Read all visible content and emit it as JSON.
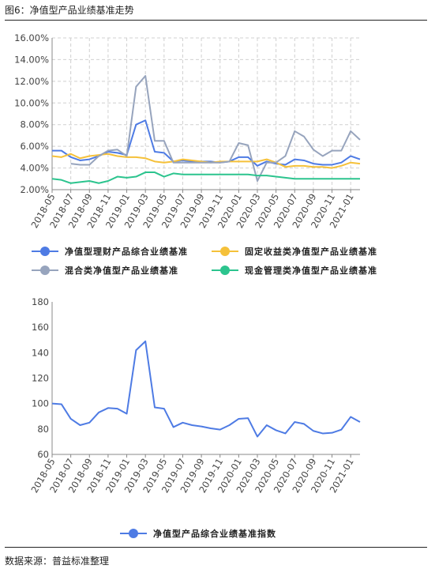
{
  "header": {
    "figure_title": "图6：净值型产品业绩基准走势"
  },
  "footer": {
    "source": "数据来源：普益标准整理"
  },
  "chart_data": [
    {
      "type": "line",
      "x_labels": [
        "2018-05",
        "2018-07",
        "2018-09",
        "2018-11",
        "2019-01",
        "2019-03",
        "2019-05",
        "2019-07",
        "2019-09",
        "2019-11",
        "2020-01",
        "2020-03",
        "2020-05",
        "2020-07",
        "2020-09",
        "2020-11",
        "2021-01"
      ],
      "x": [
        "2018-05",
        "2018-06",
        "2018-07",
        "2018-08",
        "2018-09",
        "2018-10",
        "2018-11",
        "2018-12",
        "2019-01",
        "2019-02",
        "2019-03",
        "2019-04",
        "2019-05",
        "2019-06",
        "2019-07",
        "2019-08",
        "2019-09",
        "2019-10",
        "2019-11",
        "2019-12",
        "2020-01",
        "2020-02",
        "2020-03",
        "2020-04",
        "2020-05",
        "2020-06",
        "2020-07",
        "2020-08",
        "2020-09",
        "2020-10",
        "2020-11",
        "2020-12",
        "2021-01",
        "2021-02"
      ],
      "y_ticks": [
        "2.00%",
        "4.00%",
        "6.00%",
        "8.00%",
        "10.00%",
        "12.00%",
        "14.00%",
        "16.00%"
      ],
      "ylim": [
        2,
        16
      ],
      "y_unit": "%",
      "grid": true,
      "legend_position": "bottom",
      "series": [
        {
          "name": "净值型理财产品综合业绩基准",
          "color": "#4e7be4",
          "values": [
            5.6,
            5.6,
            5.0,
            4.7,
            4.8,
            5.1,
            5.5,
            5.4,
            5.2,
            8.0,
            8.4,
            5.5,
            5.4,
            4.6,
            4.7,
            4.6,
            4.6,
            4.6,
            4.5,
            4.6,
            5.0,
            5.0,
            4.2,
            4.6,
            4.4,
            4.3,
            4.8,
            4.7,
            4.4,
            4.3,
            4.3,
            4.5,
            5.1,
            4.8
          ]
        },
        {
          "name": "固定收益类净值型产品业绩基准",
          "color": "#f5c13a",
          "values": [
            5.1,
            5.0,
            5.3,
            4.9,
            5.1,
            5.2,
            5.3,
            5.1,
            5.0,
            5.0,
            4.9,
            4.6,
            4.5,
            4.6,
            4.8,
            4.7,
            4.6,
            4.5,
            4.6,
            4.6,
            4.6,
            4.6,
            4.6,
            4.8,
            4.5,
            4.1,
            4.2,
            4.2,
            4.1,
            4.1,
            4.0,
            4.2,
            4.5,
            4.4
          ]
        },
        {
          "name": "混合类净值型产品业绩基准",
          "color": "#97a4bd",
          "values": [
            null,
            null,
            4.4,
            4.3,
            4.3,
            5.1,
            5.6,
            5.7,
            5.1,
            11.5,
            12.5,
            6.5,
            6.5,
            4.5,
            4.5,
            4.5,
            4.5,
            4.5,
            4.5,
            4.6,
            6.3,
            6.1,
            2.8,
            4.5,
            4.5,
            5.1,
            7.4,
            6.9,
            5.7,
            5.1,
            5.6,
            5.6,
            7.4,
            6.6
          ]
        },
        {
          "name": "现金管理类净值型产品业绩基准",
          "color": "#2cc48e",
          "values": [
            3.0,
            2.9,
            2.6,
            2.7,
            2.8,
            2.6,
            2.8,
            3.2,
            3.1,
            3.2,
            3.6,
            3.6,
            3.2,
            3.5,
            3.4,
            3.4,
            3.4,
            3.4,
            3.4,
            3.4,
            3.4,
            3.4,
            3.3,
            3.3,
            3.2,
            3.1,
            3.0,
            3.0,
            3.0,
            3.0,
            3.0,
            3.0,
            3.0,
            3.0
          ]
        }
      ]
    },
    {
      "type": "line",
      "x_labels": [
        "2018-05",
        "2018-07",
        "2018-09",
        "2018-11",
        "2019-01",
        "2019-03",
        "2019-05",
        "2019-07",
        "2019-09",
        "2019-11",
        "2020-01",
        "2020-03",
        "2020-05",
        "2020-07",
        "2020-09",
        "2020-11",
        "2021-01"
      ],
      "x": [
        "2018-05",
        "2018-06",
        "2018-07",
        "2018-08",
        "2018-09",
        "2018-10",
        "2018-11",
        "2018-12",
        "2019-01",
        "2019-02",
        "2019-03",
        "2019-04",
        "2019-05",
        "2019-06",
        "2019-07",
        "2019-08",
        "2019-09",
        "2019-10",
        "2019-11",
        "2019-12",
        "2020-01",
        "2020-02",
        "2020-03",
        "2020-04",
        "2020-05",
        "2020-06",
        "2020-07",
        "2020-08",
        "2020-09",
        "2020-10",
        "2020-11",
        "2020-12",
        "2021-01",
        "2021-02"
      ],
      "y_ticks": [
        "60",
        "80",
        "100",
        "120",
        "140",
        "160",
        "180"
      ],
      "ylim": [
        60,
        180
      ],
      "grid": false,
      "legend_position": "bottom",
      "series": [
        {
          "name": "净值型产品综合业绩基准指数",
          "color": "#4e7be4",
          "values": [
            100,
            99.5,
            88,
            83,
            85,
            93,
            96.5,
            96,
            92,
            142,
            149,
            97,
            96,
            81.5,
            85,
            83,
            82,
            80.5,
            79.5,
            83,
            88,
            88.5,
            74,
            83,
            79,
            76.5,
            85.5,
            84,
            78.5,
            76.5,
            77,
            79.5,
            89.5,
            85.5
          ]
        }
      ]
    }
  ]
}
